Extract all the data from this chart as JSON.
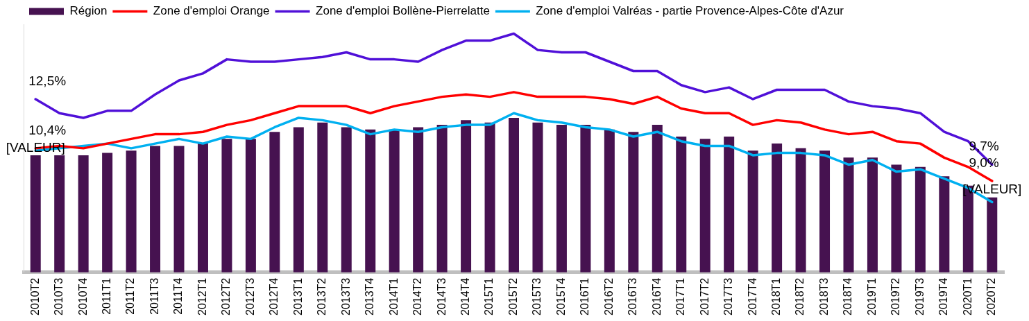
{
  "chart_data": {
    "type": "bar",
    "categories": [
      "2010T2",
      "2010T3",
      "2010T4",
      "2011T1",
      "2011T2",
      "2011T3",
      "2011T4",
      "2012T1",
      "2012T2",
      "2012T3",
      "2012T4",
      "2013T1",
      "2013T2",
      "2013T3",
      "2013T4",
      "2014T1",
      "2014T2",
      "2014T3",
      "2014T4",
      "2015T1",
      "2015T2",
      "2015T3",
      "2015T4",
      "2016T1",
      "2016T2",
      "2016T3",
      "2016T4",
      "2017T1",
      "2017T2",
      "2017T3",
      "2017T4",
      "2018T1",
      "2018T2",
      "2018T3",
      "2018T4",
      "2019T1",
      "2019T2",
      "2019T3",
      "2019T4",
      "2020T1",
      "2020T2"
    ],
    "series": [
      {
        "name": "Région",
        "color": "#461250",
        "values": [
          10.1,
          10.1,
          10.1,
          10.2,
          10.3,
          10.5,
          10.5,
          10.6,
          10.8,
          10.8,
          11.1,
          11.3,
          11.5,
          11.3,
          11.2,
          11.2,
          11.3,
          11.4,
          11.6,
          11.5,
          11.7,
          11.5,
          11.4,
          11.4,
          11.2,
          11.1,
          11.4,
          10.9,
          10.8,
          10.9,
          10.3,
          10.6,
          10.4,
          10.3,
          10.0,
          10.0,
          9.7,
          9.6,
          9.2,
          8.8,
          8.3
        ],
        "value_labels": [
          "[VALEUR]",
          null,
          null,
          null,
          null,
          null,
          null,
          null,
          null,
          null,
          null,
          null,
          null,
          null,
          null,
          null,
          null,
          null,
          null,
          null,
          null,
          null,
          null,
          null,
          null,
          null,
          null,
          null,
          null,
          null,
          null,
          null,
          null,
          null,
          null,
          null,
          null,
          null,
          null,
          null,
          "[VALEUR]"
        ]
      },
      {
        "name": "Zone d'emploi Orange",
        "type": "line",
        "color": "#ff0000",
        "values": [
          10.4,
          10.5,
          10.4,
          10.6,
          10.8,
          11.0,
          11.0,
          11.1,
          11.4,
          11.6,
          11.9,
          12.2,
          12.2,
          12.2,
          11.9,
          12.2,
          12.4,
          12.6,
          12.7,
          12.6,
          12.8,
          12.6,
          12.6,
          12.6,
          12.5,
          12.3,
          12.6,
          12.1,
          11.9,
          11.9,
          11.4,
          11.6,
          11.5,
          11.2,
          11.0,
          11.1,
          10.7,
          10.6,
          10.0,
          9.6,
          9.0
        ],
        "value_labels": [
          "10,4%",
          null,
          null,
          null,
          null,
          null,
          null,
          null,
          null,
          null,
          null,
          null,
          null,
          null,
          null,
          null,
          null,
          null,
          null,
          null,
          null,
          null,
          null,
          null,
          null,
          null,
          null,
          null,
          null,
          null,
          null,
          null,
          null,
          null,
          null,
          null,
          null,
          null,
          null,
          null,
          "9,0%"
        ]
      },
      {
        "name": "Zone d'emploi Bollène-Pierrelatte",
        "type": "line",
        "color": "#5010d8",
        "values": [
          12.5,
          11.9,
          11.7,
          12.0,
          12.0,
          12.7,
          13.3,
          13.6,
          14.2,
          14.1,
          14.1,
          14.2,
          14.3,
          14.5,
          14.2,
          14.2,
          14.1,
          14.6,
          15.0,
          15.0,
          15.3,
          14.6,
          14.5,
          14.5,
          14.1,
          13.7,
          13.7,
          13.1,
          12.8,
          13.0,
          12.5,
          12.9,
          12.9,
          12.9,
          12.4,
          12.2,
          12.1,
          11.9,
          11.1,
          10.7,
          9.7
        ],
        "value_labels": [
          "12,5%",
          null,
          null,
          null,
          null,
          null,
          null,
          null,
          null,
          null,
          null,
          null,
          null,
          null,
          null,
          null,
          null,
          null,
          null,
          null,
          null,
          null,
          null,
          null,
          null,
          null,
          null,
          null,
          null,
          null,
          null,
          null,
          null,
          null,
          null,
          null,
          null,
          null,
          null,
          null,
          "9,7%"
        ]
      },
      {
        "name": "Zone d'emploi Valréas - partie Provence-Alpes-Côte d'Azur",
        "type": "line",
        "color": "#00b0f0",
        "values": [
          10.3,
          10.4,
          10.5,
          10.6,
          10.4,
          10.6,
          10.8,
          10.6,
          10.9,
          10.8,
          11.3,
          11.7,
          11.6,
          11.4,
          11.0,
          11.2,
          11.1,
          11.3,
          11.4,
          11.4,
          11.9,
          11.6,
          11.5,
          11.3,
          11.2,
          10.9,
          11.1,
          10.7,
          10.5,
          10.5,
          10.1,
          10.2,
          10.2,
          10.1,
          9.7,
          9.9,
          9.4,
          9.5,
          9.1,
          8.7,
          8.1
        ]
      }
    ],
    "ylim": [
      5.1,
      15.7
    ],
    "tick_labels": "x",
    "legend": "top",
    "marker": "none",
    "line_style": "solid"
  }
}
